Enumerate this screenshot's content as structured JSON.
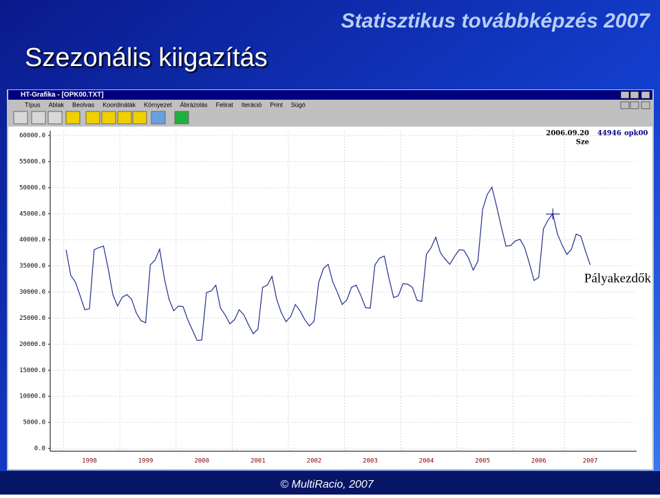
{
  "slide": {
    "title": "Szezonális kiigazítás",
    "header": "Statisztikus továbbképzés 2007",
    "footer": "© MultiRacio, 2007"
  },
  "window": {
    "title": "HT-Grafika - [OPK00.TXT]",
    "menu": [
      "Típus",
      "Ablak",
      "Beolvas",
      "Koordináták",
      "Környezet",
      "Ábrázolás",
      "Felirat",
      "Iteráció",
      "Print",
      "Súgó"
    ]
  },
  "chart_data": {
    "type": "line",
    "annotations": {
      "date": "2006.09.20",
      "value": "44946",
      "file": "opk00",
      "sub": "Sze",
      "label": "Pályakezdők"
    },
    "cursor_value": 44946,
    "cursor_index": 104,
    "categories": [
      null,
      null,
      null,
      null,
      null,
      "1998",
      null,
      null,
      null,
      null,
      null,
      null,
      null,
      null,
      null,
      null,
      null,
      "1999",
      null,
      null,
      null,
      null,
      null,
      null,
      null,
      null,
      null,
      null,
      null,
      "2000",
      null,
      null,
      null,
      null,
      null,
      null,
      null,
      null,
      null,
      null,
      null,
      "2001",
      null,
      null,
      null,
      null,
      null,
      null,
      null,
      null,
      null,
      null,
      null,
      "2002",
      null,
      null,
      null,
      null,
      null,
      null,
      null,
      null,
      null,
      null,
      null,
      "2003",
      null,
      null,
      null,
      null,
      null,
      null,
      null,
      null,
      null,
      null,
      null,
      "2004",
      null,
      null,
      null,
      null,
      null,
      null,
      null,
      null,
      null,
      null,
      null,
      "2005",
      null,
      null,
      null,
      null,
      null,
      null,
      null,
      null,
      null,
      null,
      null,
      "2006",
      null,
      null,
      null,
      null,
      null,
      null,
      null,
      null,
      null,
      null,
      "2007"
    ],
    "series": [
      {
        "name": "Pályakezdők",
        "color": "#1f2d8a",
        "values": [
          38100,
          33200,
          31900,
          29300,
          26600,
          26800,
          38100,
          38500,
          38800,
          34500,
          29500,
          27300,
          29000,
          29500,
          28600,
          26000,
          24500,
          24100,
          35200,
          36100,
          38200,
          32600,
          28600,
          26400,
          27300,
          27200,
          24700,
          22700,
          20700,
          20800,
          29900,
          30200,
          31300,
          26900,
          25600,
          23900,
          24700,
          26600,
          25600,
          23700,
          22000,
          22900,
          30900,
          31300,
          33000,
          28600,
          26000,
          24300,
          25300,
          27600,
          26400,
          24700,
          23500,
          24400,
          31900,
          34500,
          35300,
          31900,
          29900,
          27600,
          28500,
          30900,
          31300,
          29300,
          27000,
          26900,
          35200,
          36500,
          36900,
          32600,
          28900,
          29300,
          31600,
          31500,
          30900,
          28400,
          28200,
          37200,
          38500,
          40500,
          37500,
          36300,
          35300,
          36800,
          38100,
          38000,
          36500,
          34200,
          35900,
          45800,
          48700,
          50100,
          46400,
          42500,
          38800,
          38900,
          39800,
          40100,
          38500,
          35500,
          32200,
          32800,
          42100,
          43800,
          45000,
          41100,
          39000,
          37200,
          38200,
          41100,
          40700,
          37800,
          35200
        ]
      }
    ],
    "ylim": [
      0,
      60000
    ],
    "yticks": [
      {
        "value": 0,
        "label": "0.0"
      },
      {
        "value": 5000,
        "label": "5000.0"
      },
      {
        "value": 10000,
        "label": "10000.0"
      },
      {
        "value": 15000,
        "label": "15000.0"
      },
      {
        "value": 20000,
        "label": "20000.0"
      },
      {
        "value": 25000,
        "label": "25000.0"
      },
      {
        "value": 30000,
        "label": "30000.0"
      },
      {
        "value": 35000,
        "label": "35000.0"
      },
      {
        "value": 40000,
        "label": "40000.0"
      },
      {
        "value": 45000,
        "label": "45000.0"
      },
      {
        "value": 50000,
        "label": "50000.0"
      },
      {
        "value": 55000,
        "label": "55000.0"
      },
      {
        "value": 60000,
        "label": "60000.0"
      }
    ],
    "grid": true
  }
}
